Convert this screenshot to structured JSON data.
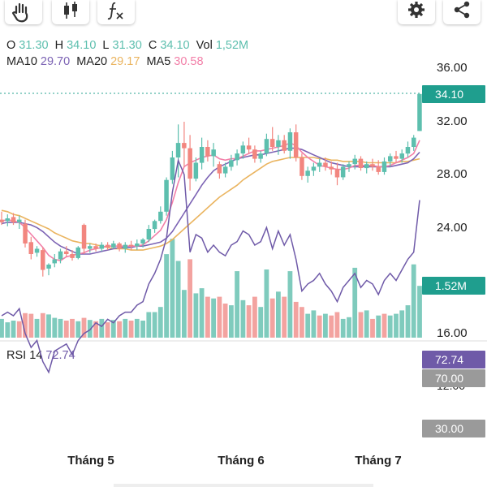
{
  "toolbar": {
    "left_icons": [
      "hand-pan-icon",
      "candlestick-icon",
      "indicator-fx-icon"
    ],
    "right_icons": [
      "gear-icon",
      "share-icon"
    ]
  },
  "ohlc_line": {
    "o_label": "O",
    "o_value": "31.30",
    "h_label": "H",
    "h_value": "34.10",
    "l_label": "L",
    "l_value": "31.30",
    "c_label": "C",
    "c_value": "34.10",
    "vol_label": "Vol",
    "vol_value": "1,52M"
  },
  "ma_line": {
    "ma10_label": "MA10",
    "ma10_value": "29.70",
    "ma20_label": "MA20",
    "ma20_value": "29.17",
    "ma5_label": "MA5",
    "ma5_value": "30.58"
  },
  "rsi_label": {
    "name": "RSI 14",
    "value": "72.74"
  },
  "colors": {
    "up": "#5dbfae",
    "down": "#f2867f",
    "vol_up": "#7fcbbd",
    "vol_down": "#f3a3a0",
    "ma5": "#f27fa8",
    "ma10": "#7c63b4",
    "ma20": "#eab45f",
    "rsi": "#6f5aa8",
    "price_tag": "#1f9e8e",
    "volume_tag": "#1f9e8e",
    "rsi_tag": "#6f5aa8",
    "level_tag": "#9a9a9a"
  },
  "chart_data": {
    "type": "candlestick",
    "x_tick_labels": [
      "Tháng 5",
      "Tháng 6",
      "Tháng 7"
    ],
    "price_axis": {
      "ticks": [
        "36.00",
        "32.00",
        "28.00",
        "24.00",
        "16.00"
      ],
      "range": [
        16,
        36
      ]
    },
    "current_price_tag": "34.10",
    "volume_tag": "1.52M",
    "rsi_axis": {
      "visible_tick": "70.00",
      "levels": [
        70,
        30
      ],
      "level_labels": [
        "70.00",
        "30.00"
      ],
      "partial_tick": "12.00"
    },
    "rsi_tag": "72.74",
    "candles": [
      {
        "o": 24.6,
        "h": 25.2,
        "l": 24.2,
        "c": 24.4
      },
      {
        "o": 24.5,
        "h": 25.0,
        "l": 24.1,
        "c": 24.7
      },
      {
        "o": 24.8,
        "h": 25.1,
        "l": 24.2,
        "c": 24.4
      },
      {
        "o": 24.4,
        "h": 24.9,
        "l": 23.9,
        "c": 24.6
      },
      {
        "o": 24.3,
        "h": 24.6,
        "l": 22.5,
        "c": 22.8
      },
      {
        "o": 22.9,
        "h": 23.3,
        "l": 21.6,
        "c": 22.0
      },
      {
        "o": 22.1,
        "h": 22.6,
        "l": 21.8,
        "c": 22.4
      },
      {
        "o": 22.3,
        "h": 22.5,
        "l": 20.3,
        "c": 20.8
      },
      {
        "o": 20.9,
        "h": 21.3,
        "l": 20.4,
        "c": 21.2
      },
      {
        "o": 21.3,
        "h": 22.0,
        "l": 21.0,
        "c": 21.6
      },
      {
        "o": 21.6,
        "h": 22.4,
        "l": 21.3,
        "c": 22.2
      },
      {
        "o": 22.2,
        "h": 22.6,
        "l": 21.8,
        "c": 22.0
      },
      {
        "o": 22.0,
        "h": 22.3,
        "l": 21.5,
        "c": 21.7
      },
      {
        "o": 21.7,
        "h": 22.6,
        "l": 21.6,
        "c": 22.5
      },
      {
        "o": 24.2,
        "h": 24.3,
        "l": 22.0,
        "c": 22.4
      },
      {
        "o": 22.4,
        "h": 22.8,
        "l": 22.1,
        "c": 22.6
      },
      {
        "o": 22.6,
        "h": 22.8,
        "l": 22.2,
        "c": 22.4
      },
      {
        "o": 22.4,
        "h": 22.9,
        "l": 22.2,
        "c": 22.7
      },
      {
        "o": 22.7,
        "h": 22.9,
        "l": 22.3,
        "c": 22.5
      },
      {
        "o": 22.5,
        "h": 23.0,
        "l": 22.4,
        "c": 22.8
      },
      {
        "o": 22.8,
        "h": 22.9,
        "l": 22.2,
        "c": 22.4
      },
      {
        "o": 22.4,
        "h": 22.9,
        "l": 22.1,
        "c": 22.7
      },
      {
        "o": 22.7,
        "h": 23.0,
        "l": 22.3,
        "c": 22.6
      },
      {
        "o": 22.6,
        "h": 23.1,
        "l": 22.3,
        "c": 22.8
      },
      {
        "o": 22.8,
        "h": 23.2,
        "l": 22.5,
        "c": 23.1
      },
      {
        "o": 23.1,
        "h": 24.2,
        "l": 22.9,
        "c": 23.9
      },
      {
        "o": 23.9,
        "h": 24.6,
        "l": 23.6,
        "c": 24.5
      },
      {
        "o": 24.5,
        "h": 25.6,
        "l": 24.3,
        "c": 25.2
      },
      {
        "o": 25.2,
        "h": 27.8,
        "l": 24.9,
        "c": 27.6
      },
      {
        "o": 27.6,
        "h": 29.8,
        "l": 27.3,
        "c": 29.3
      },
      {
        "o": 29.3,
        "h": 31.8,
        "l": 27.8,
        "c": 30.4
      },
      {
        "o": 30.4,
        "h": 32.0,
        "l": 28.6,
        "c": 30.0
      },
      {
        "o": 30.0,
        "h": 31.0,
        "l": 26.8,
        "c": 27.7
      },
      {
        "o": 27.7,
        "h": 29.3,
        "l": 27.5,
        "c": 28.9
      },
      {
        "o": 28.9,
        "h": 30.8,
        "l": 28.4,
        "c": 30.1
      },
      {
        "o": 30.1,
        "h": 30.6,
        "l": 29.0,
        "c": 29.4
      },
      {
        "o": 29.4,
        "h": 30.4,
        "l": 28.6,
        "c": 29.9
      },
      {
        "o": 28.8,
        "h": 29.0,
        "l": 27.7,
        "c": 28.1
      },
      {
        "o": 28.1,
        "h": 28.9,
        "l": 27.8,
        "c": 28.6
      },
      {
        "o": 28.6,
        "h": 29.5,
        "l": 28.3,
        "c": 29.1
      },
      {
        "o": 29.1,
        "h": 29.9,
        "l": 28.7,
        "c": 29.6
      },
      {
        "o": 29.6,
        "h": 30.5,
        "l": 29.2,
        "c": 30.2
      },
      {
        "o": 30.2,
        "h": 30.8,
        "l": 29.6,
        "c": 29.9
      },
      {
        "o": 29.9,
        "h": 30.2,
        "l": 28.9,
        "c": 29.2
      },
      {
        "o": 29.2,
        "h": 29.8,
        "l": 28.9,
        "c": 29.6
      },
      {
        "o": 29.6,
        "h": 31.1,
        "l": 29.4,
        "c": 30.7
      },
      {
        "o": 30.7,
        "h": 31.6,
        "l": 29.8,
        "c": 30.1
      },
      {
        "o": 30.1,
        "h": 31.0,
        "l": 29.5,
        "c": 30.6
      },
      {
        "o": 30.6,
        "h": 31.0,
        "l": 29.6,
        "c": 29.8
      },
      {
        "o": 29.8,
        "h": 31.5,
        "l": 29.2,
        "c": 31.2
      },
      {
        "o": 31.2,
        "h": 31.8,
        "l": 29.0,
        "c": 29.3
      },
      {
        "o": 29.3,
        "h": 29.6,
        "l": 27.6,
        "c": 27.9
      },
      {
        "o": 27.9,
        "h": 28.6,
        "l": 27.4,
        "c": 28.3
      },
      {
        "o": 28.3,
        "h": 28.9,
        "l": 27.9,
        "c": 28.6
      },
      {
        "o": 28.6,
        "h": 29.2,
        "l": 28.2,
        "c": 28.9
      },
      {
        "o": 28.9,
        "h": 29.3,
        "l": 28.3,
        "c": 28.6
      },
      {
        "o": 28.6,
        "h": 29.0,
        "l": 28.0,
        "c": 28.4
      },
      {
        "o": 28.4,
        "h": 28.9,
        "l": 27.2,
        "c": 27.8
      },
      {
        "o": 27.8,
        "h": 28.8,
        "l": 27.6,
        "c": 28.6
      },
      {
        "o": 28.6,
        "h": 29.0,
        "l": 28.2,
        "c": 28.8
      },
      {
        "o": 28.8,
        "h": 29.5,
        "l": 28.4,
        "c": 29.2
      },
      {
        "o": 29.2,
        "h": 29.4,
        "l": 28.3,
        "c": 28.5
      },
      {
        "o": 28.5,
        "h": 29.0,
        "l": 28.1,
        "c": 28.8
      },
      {
        "o": 28.8,
        "h": 29.2,
        "l": 28.3,
        "c": 28.6
      },
      {
        "o": 28.6,
        "h": 29.1,
        "l": 28.0,
        "c": 28.2
      },
      {
        "o": 28.2,
        "h": 29.3,
        "l": 28.0,
        "c": 29.0
      },
      {
        "o": 29.0,
        "h": 29.6,
        "l": 28.6,
        "c": 29.4
      },
      {
        "o": 29.4,
        "h": 29.8,
        "l": 28.9,
        "c": 29.2
      },
      {
        "o": 29.2,
        "h": 29.9,
        "l": 28.9,
        "c": 29.6
      },
      {
        "o": 29.6,
        "h": 30.5,
        "l": 29.3,
        "c": 30.1
      },
      {
        "o": 30.1,
        "h": 31.0,
        "l": 29.8,
        "c": 30.8
      },
      {
        "o": 31.3,
        "h": 34.1,
        "l": 31.3,
        "c": 34.1
      }
    ],
    "volume_bars": [
      {
        "v": 0.55,
        "up": true
      },
      {
        "v": 0.45,
        "up": true
      },
      {
        "v": 0.5,
        "up": true
      },
      {
        "v": 0.48,
        "up": false
      },
      {
        "v": 0.72,
        "up": false
      },
      {
        "v": 0.7,
        "up": false
      },
      {
        "v": 0.55,
        "up": true
      },
      {
        "v": 0.72,
        "up": false
      },
      {
        "v": 0.68,
        "up": true
      },
      {
        "v": 0.58,
        "up": true
      },
      {
        "v": 0.55,
        "up": true
      },
      {
        "v": 0.5,
        "up": false
      },
      {
        "v": 0.55,
        "up": false
      },
      {
        "v": 0.48,
        "up": true
      },
      {
        "v": 0.58,
        "up": false
      },
      {
        "v": 0.52,
        "up": true
      },
      {
        "v": 0.48,
        "up": false
      },
      {
        "v": 0.55,
        "up": true
      },
      {
        "v": 0.45,
        "up": false
      },
      {
        "v": 0.52,
        "up": true
      },
      {
        "v": 0.48,
        "up": false
      },
      {
        "v": 0.55,
        "up": true
      },
      {
        "v": 0.5,
        "up": false
      },
      {
        "v": 0.55,
        "up": true
      },
      {
        "v": 0.5,
        "up": true
      },
      {
        "v": 0.75,
        "up": true
      },
      {
        "v": 0.75,
        "up": true
      },
      {
        "v": 0.9,
        "up": true
      },
      {
        "v": 2.45,
        "up": true
      },
      {
        "v": 2.9,
        "up": true
      },
      {
        "v": 2.25,
        "up": true
      },
      {
        "v": 1.4,
        "up": true
      },
      {
        "v": 2.3,
        "up": false
      },
      {
        "v": 1.3,
        "up": true
      },
      {
        "v": 1.45,
        "up": true
      },
      {
        "v": 1.2,
        "up": false
      },
      {
        "v": 1.15,
        "up": true
      },
      {
        "v": 1.2,
        "up": false
      },
      {
        "v": 1.0,
        "up": false
      },
      {
        "v": 0.95,
        "up": true
      },
      {
        "v": 1.95,
        "up": true
      },
      {
        "v": 1.1,
        "up": true
      },
      {
        "v": 0.95,
        "up": false
      },
      {
        "v": 1.2,
        "up": false
      },
      {
        "v": 0.9,
        "up": true
      },
      {
        "v": 2.0,
        "up": true
      },
      {
        "v": 1.15,
        "up": false
      },
      {
        "v": 1.35,
        "up": true
      },
      {
        "v": 1.2,
        "up": false
      },
      {
        "v": 1.95,
        "up": true
      },
      {
        "v": 1.05,
        "up": false
      },
      {
        "v": 0.9,
        "up": false
      },
      {
        "v": 0.7,
        "up": true
      },
      {
        "v": 0.8,
        "up": true
      },
      {
        "v": 0.65,
        "up": false
      },
      {
        "v": 0.7,
        "up": true
      },
      {
        "v": 0.65,
        "up": false
      },
      {
        "v": 0.75,
        "up": false
      },
      {
        "v": 0.55,
        "up": true
      },
      {
        "v": 0.6,
        "up": true
      },
      {
        "v": 2.05,
        "up": true
      },
      {
        "v": 0.75,
        "up": false
      },
      {
        "v": 0.8,
        "up": true
      },
      {
        "v": 0.55,
        "up": false
      },
      {
        "v": 0.65,
        "up": true
      },
      {
        "v": 0.7,
        "up": false
      },
      {
        "v": 0.65,
        "up": true
      },
      {
        "v": 0.7,
        "up": true
      },
      {
        "v": 0.8,
        "up": true
      },
      {
        "v": 0.95,
        "up": true
      },
      {
        "v": 2.15,
        "up": true
      },
      {
        "v": 1.52,
        "up": true
      }
    ],
    "ma5": [
      24.5,
      24.6,
      24.5,
      24.4,
      24.0,
      23.5,
      23.0,
      22.5,
      21.9,
      21.6,
      21.5,
      21.8,
      21.9,
      22.0,
      22.1,
      22.3,
      22.4,
      22.5,
      22.6,
      22.6,
      22.6,
      22.6,
      22.6,
      22.6,
      22.7,
      23.0,
      23.4,
      23.8,
      24.6,
      25.9,
      27.4,
      28.6,
      28.9,
      29.1,
      29.3,
      29.4,
      29.5,
      29.2,
      29.1,
      29.2,
      29.2,
      29.4,
      29.6,
      29.8,
      29.8,
      29.9,
      30.0,
      30.1,
      30.2,
      30.4,
      30.2,
      29.7,
      29.3,
      29.0,
      28.7,
      28.6,
      28.5,
      28.4,
      28.4,
      28.5,
      28.7,
      28.7,
      28.7,
      28.7,
      28.6,
      28.6,
      28.7,
      28.9,
      29.1,
      29.3,
      29.6,
      30.6
    ],
    "ma10": [
      24.3,
      24.4,
      24.4,
      24.4,
      24.3,
      24.2,
      24.0,
      23.7,
      23.3,
      22.9,
      22.6,
      22.4,
      22.2,
      22.0,
      22.0,
      22.0,
      22.1,
      22.2,
      22.3,
      22.4,
      22.5,
      22.5,
      22.5,
      22.6,
      22.6,
      22.7,
      22.8,
      22.9,
      23.2,
      23.7,
      24.4,
      25.1,
      25.8,
      26.5,
      27.2,
      27.8,
      28.3,
      28.6,
      28.8,
      29.0,
      29.2,
      29.3,
      29.4,
      29.5,
      29.5,
      29.6,
      29.7,
      29.8,
      29.9,
      30.0,
      30.0,
      29.9,
      29.7,
      29.5,
      29.3,
      29.1,
      28.9,
      28.8,
      28.7,
      28.6,
      28.6,
      28.6,
      28.6,
      28.6,
      28.6,
      28.6,
      28.6,
      28.7,
      28.8,
      28.9,
      29.2,
      29.7
    ],
    "ma20": [
      25.3,
      25.2,
      25.0,
      24.9,
      24.7,
      24.5,
      24.3,
      24.1,
      23.9,
      23.6,
      23.4,
      23.2,
      23.0,
      22.9,
      22.8,
      22.8,
      22.7,
      22.6,
      22.5,
      22.4,
      22.4,
      22.4,
      22.3,
      22.3,
      22.3,
      22.4,
      22.5,
      22.6,
      22.8,
      23.1,
      23.5,
      23.9,
      24.3,
      24.7,
      25.1,
      25.5,
      25.9,
      26.3,
      26.6,
      26.9,
      27.2,
      27.6,
      27.9,
      28.2,
      28.5,
      28.8,
      29.0,
      29.1,
      29.2,
      29.3,
      29.3,
      29.3,
      29.3,
      29.3,
      29.2,
      29.2,
      29.1,
      29.1,
      29.0,
      29.0,
      29.0,
      29.0,
      28.9,
      28.9,
      28.9,
      28.9,
      28.9,
      28.9,
      29.0,
      29.0,
      29.1,
      29.2
    ],
    "rsi": [
      40,
      41,
      40,
      42,
      35,
      31,
      33,
      27,
      24,
      30,
      31,
      32,
      29,
      33,
      35,
      36,
      38,
      37,
      39,
      38,
      40,
      41,
      41,
      43,
      44,
      49,
      52,
      56,
      62,
      75,
      84,
      80,
      58,
      63,
      62,
      58,
      60,
      58,
      57,
      60,
      61,
      64,
      63,
      60,
      61,
      65,
      59,
      64,
      60,
      63,
      56,
      47,
      49,
      50,
      52,
      49,
      47,
      44,
      48,
      50,
      52,
      48,
      50,
      49,
      46,
      50,
      52,
      50,
      53,
      56,
      58,
      72.74
    ]
  }
}
